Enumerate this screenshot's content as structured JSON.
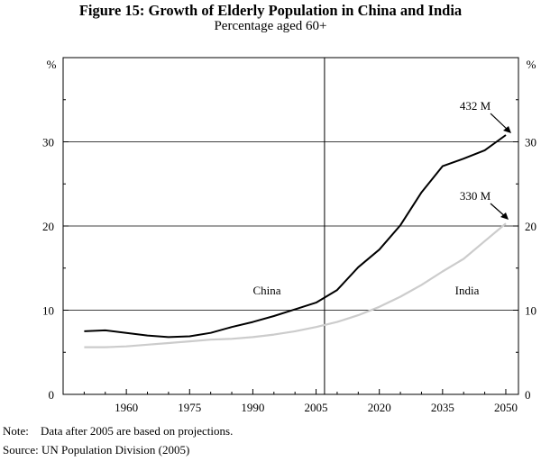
{
  "chart_data": {
    "type": "line",
    "title": "Figure 15: Growth of Elderly Population in China and India",
    "subtitle": "Percentage aged 60+",
    "y_unit_left": "%",
    "y_unit_right": "%",
    "ylim": [
      0,
      40
    ],
    "yticks": [
      0,
      10,
      20,
      30
    ],
    "ytick_labels": [
      "0",
      "10",
      "20",
      "30"
    ],
    "xlim": [
      1945,
      2053
    ],
    "xticks": [
      1960,
      1975,
      1990,
      2005,
      2020,
      2035,
      2050
    ],
    "xtick_labels": [
      "1960",
      "1975",
      "1990",
      "2005",
      "2020",
      "2035",
      "2050"
    ],
    "projection_divider_year": 2007,
    "grid": true,
    "series": [
      {
        "name": "China",
        "color": "#000000",
        "x": [
          1950,
          1955,
          1960,
          1965,
          1970,
          1975,
          1980,
          1985,
          1990,
          1995,
          2000,
          2005,
          2010,
          2015,
          2020,
          2025,
          2030,
          2035,
          2040,
          2045,
          2050
        ],
        "values": [
          7.5,
          7.6,
          7.3,
          7.0,
          6.8,
          6.9,
          7.3,
          8.0,
          8.6,
          9.3,
          10.1,
          10.9,
          12.4,
          15.1,
          17.2,
          20.1,
          24.0,
          27.1,
          28.0,
          29.0,
          30.8
        ]
      },
      {
        "name": "India",
        "color": "#cccccc",
        "x": [
          1950,
          1955,
          1960,
          1965,
          1970,
          1975,
          1980,
          1985,
          1990,
          1995,
          2000,
          2005,
          2010,
          2015,
          2020,
          2025,
          2030,
          2035,
          2040,
          2045,
          2050
        ],
        "values": [
          5.6,
          5.6,
          5.7,
          5.9,
          6.1,
          6.3,
          6.5,
          6.6,
          6.8,
          7.1,
          7.5,
          8.0,
          8.6,
          9.4,
          10.4,
          11.6,
          13.0,
          14.6,
          16.1,
          18.2,
          20.3
        ]
      }
    ],
    "series_labels": [
      "China",
      "India"
    ],
    "annotations": [
      "432 M",
      "330 M"
    ]
  },
  "note": {
    "label": "Note:",
    "text": "Data after 2005 are based on projections."
  },
  "source": {
    "label": "Source:",
    "text": "UN Population Division (2005)"
  }
}
